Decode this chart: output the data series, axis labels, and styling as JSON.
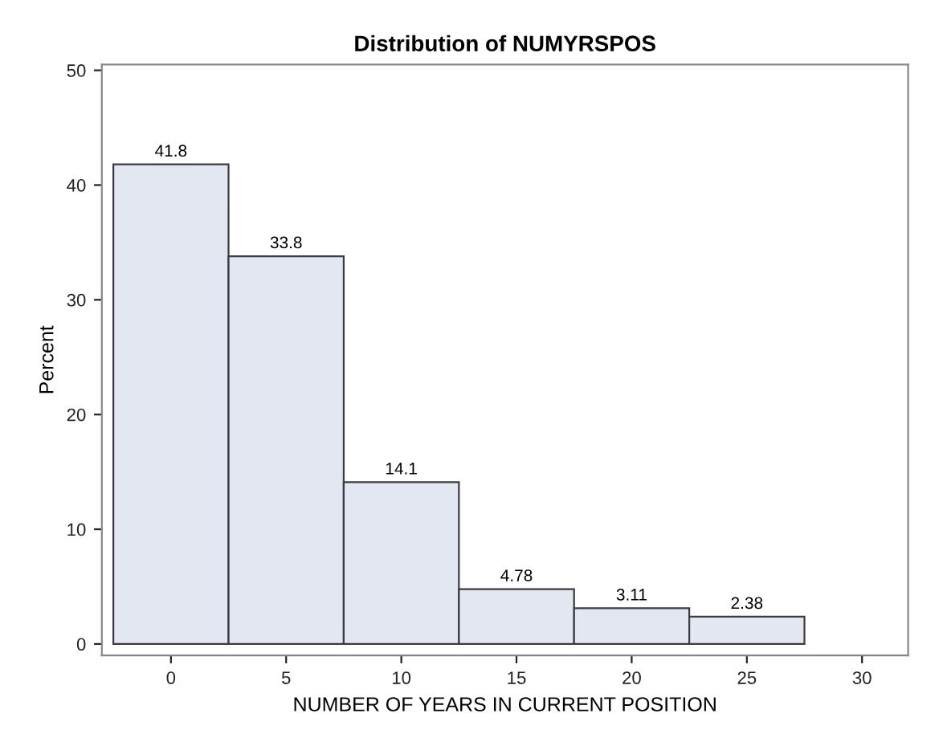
{
  "chart_data": {
    "type": "histogram",
    "title": "Distribution of NUMYRSPOS",
    "xlabel": "NUMBER OF YEARS IN CURRENT POSITION",
    "ylabel": "Percent",
    "bins": [
      -2.5,
      2.5,
      7.5,
      12.5,
      17.5,
      22.5,
      27.5
    ],
    "values": [
      41.8,
      33.8,
      14.1,
      4.78,
      3.11,
      2.38
    ],
    "color": "#e3e7f1",
    "data_labels": true,
    "xlim": [
      -3,
      32
    ],
    "xticks": [
      0,
      5,
      10,
      15,
      20,
      25,
      30
    ],
    "ylim": [
      -1,
      50.5
    ],
    "yticks": [
      0,
      10,
      20,
      30,
      40,
      50
    ],
    "grid": false
  }
}
